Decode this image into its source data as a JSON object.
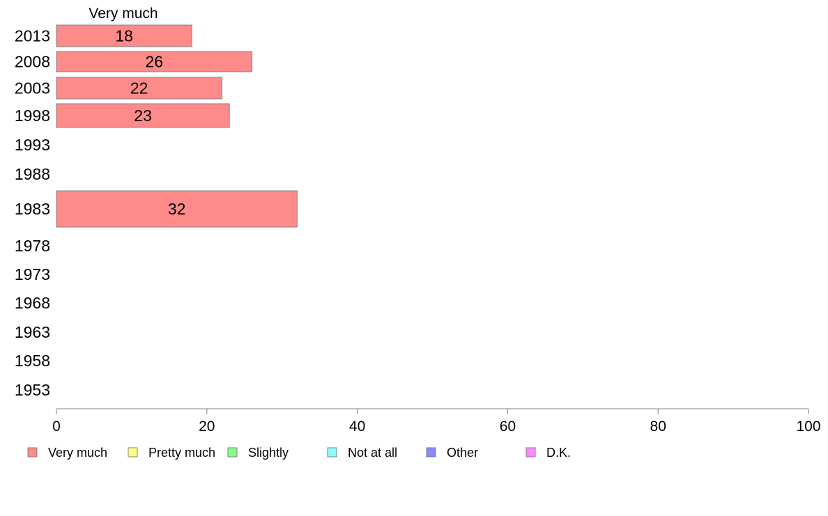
{
  "chart_data": {
    "type": "bar",
    "orientation": "horizontal",
    "stacked": true,
    "series_header": "Very much",
    "categories": [
      "2013",
      "2008",
      "2003",
      "1998",
      "1993",
      "1988",
      "1983",
      "1978",
      "1973",
      "1968",
      "1963",
      "1958",
      "1953"
    ],
    "series": [
      {
        "name": "Very much",
        "color": "#ff8a8a",
        "values": [
          18,
          26,
          22,
          23,
          null,
          null,
          32,
          null,
          null,
          null,
          null,
          null,
          null
        ]
      },
      {
        "name": "Pretty much",
        "color": "#ffff88",
        "values": [
          null,
          null,
          null,
          null,
          null,
          null,
          null,
          null,
          null,
          null,
          null,
          null,
          null
        ]
      },
      {
        "name": "Slightly",
        "color": "#88ff88",
        "values": [
          null,
          null,
          null,
          null,
          null,
          null,
          null,
          null,
          null,
          null,
          null,
          null,
          null
        ]
      },
      {
        "name": "Not at all",
        "color": "#88ffff",
        "values": [
          null,
          null,
          null,
          null,
          null,
          null,
          null,
          null,
          null,
          null,
          null,
          null,
          null
        ]
      },
      {
        "name": "Other",
        "color": "#8888ff",
        "values": [
          null,
          null,
          null,
          null,
          null,
          null,
          null,
          null,
          null,
          null,
          null,
          null,
          null
        ]
      },
      {
        "name": "D.K.",
        "color": "#ff88ff",
        "values": [
          null,
          null,
          null,
          null,
          null,
          null,
          null,
          null,
          null,
          null,
          null,
          null,
          null
        ]
      }
    ],
    "data_labels": [
      "18",
      "26",
      "22",
      "23",
      "",
      "",
      "32",
      "",
      "",
      "",
      "",
      "",
      ""
    ],
    "xlim": [
      0,
      100
    ],
    "xticks": [
      "0",
      "20",
      "40",
      "60",
      "80",
      "100"
    ],
    "grid": false,
    "legend": "bottom"
  }
}
